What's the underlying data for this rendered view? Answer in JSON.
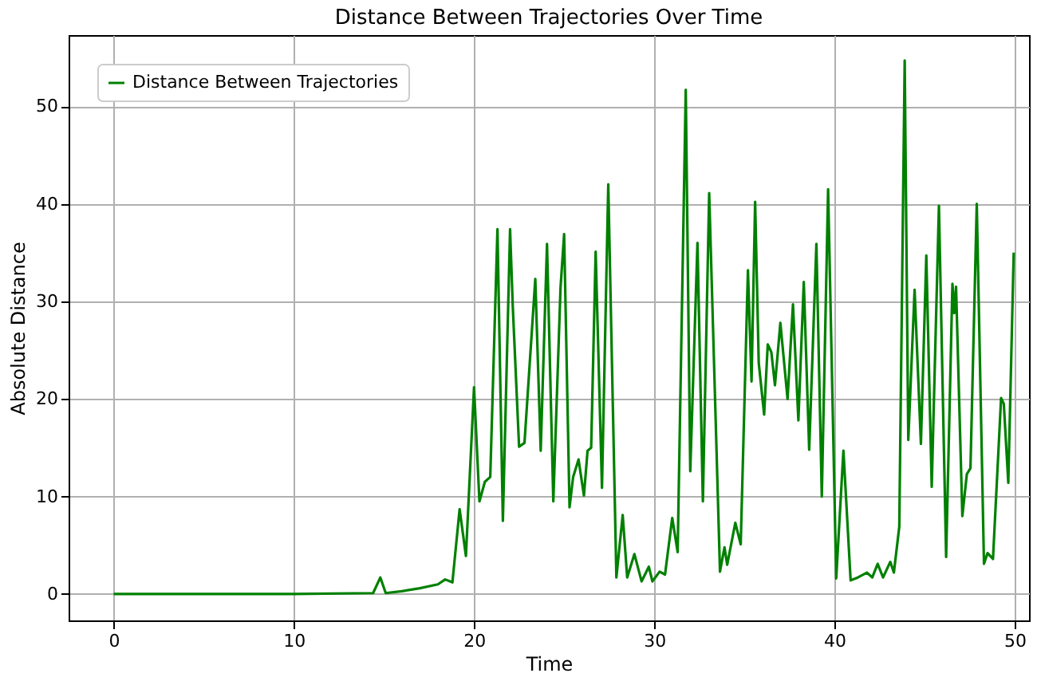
{
  "chart_data": {
    "type": "line",
    "title": "Distance Between Trajectories Over Time",
    "xlabel": "Time",
    "ylabel": "Absolute Distance",
    "xlim": [
      -2.5,
      50.8
    ],
    "ylim": [
      -2.7,
      57.3
    ],
    "xticks": [
      0,
      10,
      20,
      30,
      40,
      50
    ],
    "yticks": [
      0,
      10,
      20,
      30,
      40,
      50
    ],
    "grid": true,
    "legend": "top left",
    "line_style": "solid",
    "marker": "none",
    "series": [
      {
        "name": "Distance Between Trajectories",
        "color": "#008000",
        "x": [
          0,
          5,
          10,
          14.4,
          14.8,
          15.1,
          16,
          17,
          18,
          18.4,
          18.8,
          19.2,
          19.55,
          20.0,
          20.3,
          20.6,
          20.9,
          21.3,
          21.6,
          22.0,
          22.15,
          22.5,
          22.8,
          23.4,
          23.7,
          24.05,
          24.4,
          24.8,
          25.0,
          25.3,
          25.5,
          25.8,
          26.1,
          26.3,
          26.5,
          26.75,
          27.1,
          27.45,
          27.9,
          28.25,
          28.5,
          28.9,
          29.3,
          29.7,
          29.9,
          30.3,
          30.6,
          31.0,
          31.3,
          31.75,
          32.0,
          32.4,
          32.7,
          33.05,
          33.65,
          33.9,
          34.05,
          34.5,
          34.8,
          35.2,
          35.4,
          35.6,
          35.8,
          36.1,
          36.3,
          36.5,
          36.7,
          37.0,
          37.4,
          37.7,
          38.0,
          38.3,
          38.6,
          39.0,
          39.3,
          39.65,
          40.1,
          40.5,
          40.9,
          41.3,
          41.8,
          42.1,
          42.4,
          42.7,
          43.1,
          43.3,
          43.6,
          43.9,
          44.1,
          44.45,
          44.8,
          45.1,
          45.4,
          45.8,
          46.2,
          46.55,
          46.65,
          46.75,
          47.1,
          47.35,
          47.55,
          47.9,
          48.3,
          48.5,
          48.8,
          49.25,
          49.4,
          49.65,
          49.95
        ],
        "values": [
          0,
          0,
          0,
          0.1,
          1.7,
          0.1,
          0.3,
          0.6,
          1.0,
          1.5,
          1.2,
          8.7,
          3.9,
          21.2,
          9.5,
          11.5,
          12,
          37.4,
          7.5,
          37.4,
          29.5,
          15.1,
          15.5,
          32.3,
          14.7,
          35.9,
          9.5,
          31.4,
          36.9,
          8.9,
          12,
          13.8,
          10.1,
          14.7,
          15,
          35.1,
          10.9,
          42,
          1.7,
          8.1,
          1.7,
          4.1,
          1.3,
          2.8,
          1.3,
          2.3,
          2,
          7.8,
          4.3,
          51.7,
          12.6,
          36,
          9.5,
          41.1,
          2.3,
          4.8,
          3,
          7.3,
          5.1,
          33.2,
          21.8,
          40.2,
          23.7,
          18.4,
          25.6,
          24.8,
          21.4,
          27.8,
          20,
          29.7,
          17.8,
          32,
          14.8,
          35.9,
          10,
          41.5,
          1.6,
          14.7,
          1.4,
          1.7,
          2.2,
          1.7,
          3.1,
          1.7,
          3.3,
          2.2,
          6.9,
          54.7,
          15.8,
          31.2,
          15.4,
          34.7,
          11,
          39.8,
          3.8,
          31.8,
          28.8,
          31.5,
          8,
          12.3,
          12.9,
          40,
          3.1,
          4.2,
          3.6,
          20.1,
          19.5,
          11.4,
          35
        ]
      }
    ]
  }
}
